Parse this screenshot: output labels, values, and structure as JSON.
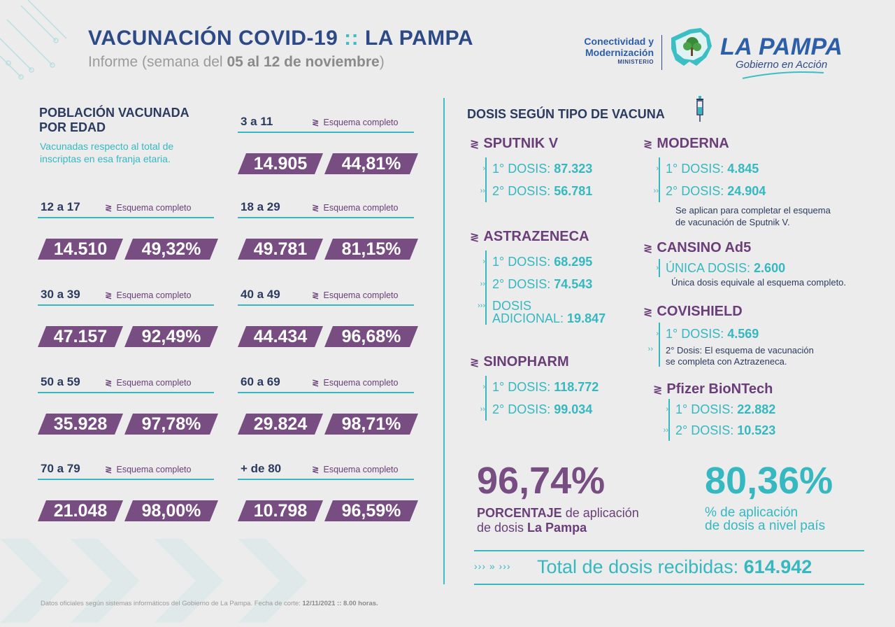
{
  "header": {
    "title_main": "VACUNACIÓN COVID-19",
    "title_sep": "::",
    "title_place": "LA PAMPA",
    "subtitle_prefix": "Informe (semana del ",
    "subtitle_dates": "05 al 12 de noviembre",
    "subtitle_suffix": ")"
  },
  "government": {
    "ministry_line1": "Conectividad y",
    "ministry_line2": "Modernización",
    "ministry_line3": "MINISTERIO",
    "name": "LA PAMPA",
    "slogan": "Gobierno en Acción"
  },
  "age_section": {
    "title_line1": "POBLACIÓN VACUNADA",
    "title_line2": "POR EDAD",
    "note_line1": "Vacunadas respecto al total de",
    "note_line2": "inscriptas en esa franja etaria.",
    "scheme_label": "Esquema completo",
    "groups": [
      {
        "age": "3 a 11",
        "count": "14.905",
        "percent": "44,81%"
      },
      {
        "age": "12 a 17",
        "count": "14.510",
        "percent": "49,32%"
      },
      {
        "age": "18 a 29",
        "count": "49.781",
        "percent": "81,15%"
      },
      {
        "age": "30 a 39",
        "count": "47.157",
        "percent": "92,49%"
      },
      {
        "age": "40 a 49",
        "count": "44.434",
        "percent": "96,68%"
      },
      {
        "age": "50 a 59",
        "count": "35.928",
        "percent": "97,78%"
      },
      {
        "age": "60 a 69",
        "count": "29.824",
        "percent": "98,71%"
      },
      {
        "age": "70 a 79",
        "count": "21.048",
        "percent": "98,00%"
      },
      {
        "age": "+ de 80",
        "count": "10.798",
        "percent": "96,59%"
      }
    ]
  },
  "doses_section": {
    "title": "DOSIS SEGÚN TIPO DE VACUNA",
    "vaccines": {
      "sputnik": {
        "name": "SPUTNIK V",
        "d1_label": "1° DOSIS:",
        "d1": "87.323",
        "d2_label": "2° DOSIS:",
        "d2": "56.781"
      },
      "astrazeneca": {
        "name": "ASTRAZENECA",
        "d1_label": "1° DOSIS:",
        "d1": "68.295",
        "d2_label": "2° DOSIS:",
        "d2": "74.543",
        "d3_label_1": "DOSIS",
        "d3_label_2": "ADICIONAL:",
        "d3": "19.847"
      },
      "sinopharm": {
        "name": "SINOPHARM",
        "d1_label": "1° DOSIS:",
        "d1": "118.772",
        "d2_label": "2° DOSIS:",
        "d2": "99.034"
      },
      "moderna": {
        "name": "MODERNA",
        "d1_label": "1° DOSIS:",
        "d1": "4.845",
        "d2_label": "2° DOSIS:",
        "d2": "24.904",
        "note_line1": "Se aplican para completar el esquema",
        "note_line2": "de vacunación de Sputnik V."
      },
      "cansino": {
        "name": "CANSINO Ad5",
        "d1_label": "ÚNICA DOSIS:",
        "d1": "2.600",
        "note": "Única dosis equivale al esquema completo."
      },
      "covishield": {
        "name": "COVISHIELD",
        "d1_label": "1° DOSIS:",
        "d1": "4.569",
        "note_line1": "2° Dosis: El esquema de vacunación",
        "note_line2": "se completa con Aztrazeneca."
      },
      "pfizer": {
        "name": "Pfizer BioNTech",
        "d1_label": "1° DOSIS:",
        "d1": "22.882",
        "d2_label": "2° DOSIS:",
        "d2": "10.523"
      }
    }
  },
  "summary": {
    "province_percent": "96,74%",
    "province_cap_bold": "PORCENTAJE",
    "province_cap_rest": " de aplicación",
    "province_cap_line2_pre": "de dosis ",
    "province_cap_line2_bold": "La Pampa",
    "country_percent": "80,36%",
    "country_cap_line1": "% de aplicación",
    "country_cap_line2": "de dosis a nivel país",
    "total_chevrons": "›››  » ›››",
    "total_label": "Total de dosis recibidas: ",
    "total_value": "614.942"
  },
  "footer": {
    "text": "Datos oficiales según sistemas informáticos del Gobierno de La Pampa. Fecha de corte: ",
    "date": "12/11/2021 :: 8.00 horas."
  },
  "colors": {
    "purple": "#774d82",
    "teal": "#35b8c0",
    "navy": "#2b3b60",
    "blue": "#2d5ea8"
  }
}
